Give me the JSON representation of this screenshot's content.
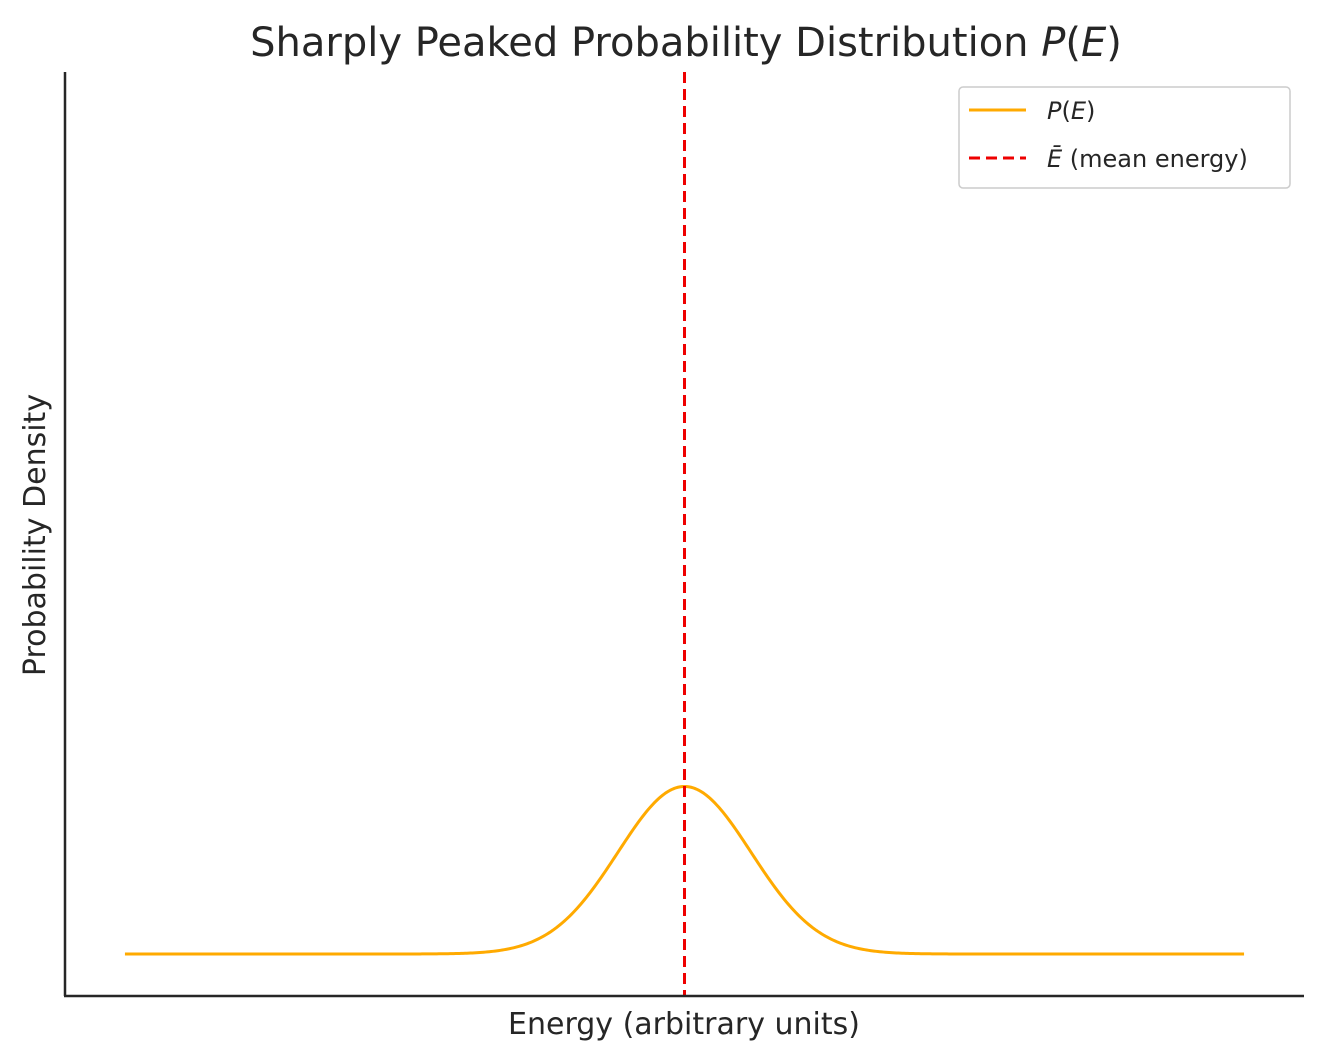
{
  "chart_data": {
    "type": "line",
    "title_text": "Sharply Peaked Probability Distribution ",
    "title_math": {
      "func": "P",
      "open": "(",
      "var": "E",
      "close": ")"
    },
    "xlabel": "Energy (arbitrary units)",
    "ylabel": "Probability Density",
    "xlim": [
      -4.65,
      4.65
    ],
    "ylim": [
      -0.2,
      4.2
    ],
    "xticks": [],
    "yticks": [],
    "grid": false,
    "legend_position": "upper right",
    "series": [
      {
        "name_math": {
          "func": "P",
          "open": "(",
          "var": "E",
          "close": ")"
        },
        "kind": "gaussian",
        "mean": 0,
        "sigma": 0.5,
        "x_range": [
          -4.2,
          4.2
        ],
        "samples": 600,
        "color": "#ffaa00",
        "style": "solid"
      },
      {
        "name_math": {
          "var": "Ē",
          "suffix": " (mean energy)"
        },
        "kind": "vline",
        "x": 0,
        "color": "#ee0000",
        "style": "dashed"
      }
    ]
  }
}
